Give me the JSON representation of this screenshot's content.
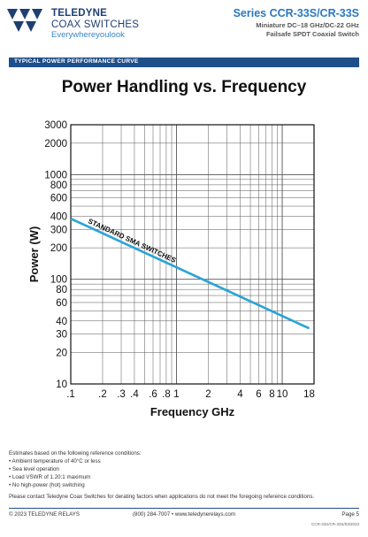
{
  "header": {
    "brand_line1": "TELEDYNE",
    "brand_line2": "COAX SWITCHES",
    "brand_tagline": "Everywhereyoulook",
    "series": "Series CCR-33S/CR-33S",
    "subtitle1": "Miniature DC–18 GHz/DC-22 GHz",
    "subtitle2": "Failsafe SPDT Coaxial Switch"
  },
  "banner": "TYPICAL POWER PERFORMANCE CURVE",
  "colors": {
    "brand_dark": "#1f4f8a",
    "accent": "#2a78c0",
    "series_line": "#29a3d9"
  },
  "chart_data": {
    "type": "line",
    "title": "Power Handling vs. Frequency",
    "xlabel": "Frequency GHz",
    "ylabel": "Power (W)",
    "xscale": "log",
    "yscale": "log",
    "xlim": [
      0.1,
      20
    ],
    "ylim": [
      10,
      3000
    ],
    "xticks": [
      {
        "v": 0.1,
        "label": ".1"
      },
      {
        "v": 0.2,
        "label": ".2"
      },
      {
        "v": 0.3,
        "label": ".3"
      },
      {
        "v": 0.4,
        "label": ".4"
      },
      {
        "v": 0.6,
        "label": ".6"
      },
      {
        "v": 0.8,
        "label": ".8"
      },
      {
        "v": 1,
        "label": "1"
      },
      {
        "v": 2,
        "label": "2"
      },
      {
        "v": 4,
        "label": "4"
      },
      {
        "v": 6,
        "label": "6"
      },
      {
        "v": 8,
        "label": "8"
      },
      {
        "v": 10,
        "label": "10"
      },
      {
        "v": 18,
        "label": "18"
      }
    ],
    "yticks": [
      {
        "v": 10,
        "label": "10"
      },
      {
        "v": 20,
        "label": "20"
      },
      {
        "v": 30,
        "label": "30"
      },
      {
        "v": 40,
        "label": "40"
      },
      {
        "v": 60,
        "label": "60"
      },
      {
        "v": 80,
        "label": "80"
      },
      {
        "v": 100,
        "label": "100"
      },
      {
        "v": 200,
        "label": "200"
      },
      {
        "v": 300,
        "label": "300"
      },
      {
        "v": 400,
        "label": "400"
      },
      {
        "v": 600,
        "label": "600"
      },
      {
        "v": 800,
        "label": "800"
      },
      {
        "v": 1000,
        "label": "1000"
      },
      {
        "v": 2000,
        "label": "2000"
      },
      {
        "v": 3000,
        "label": "3000"
      }
    ],
    "grid": true,
    "series": [
      {
        "name": "STANDARD SMA SWITCHES",
        "x": [
          0.1,
          18
        ],
        "y": [
          380,
          34
        ]
      }
    ]
  },
  "notes": {
    "intro": "Estimates based on the following reference conditions:",
    "items": [
      "• Ambient temperature of 40°C or less",
      "• Sea level operation",
      "• Load VSWR of 1.20:1 maximum",
      "• No high-power (hot) switching"
    ],
    "contact": "Please contact Teledyne Coax Switches for derating factors when applications do not meet the foregoing reference conditions."
  },
  "footer": {
    "copyright": "© 2023 TELEDYNE RELAYS",
    "contact": "(800) 284-7007 • www.teledynerelays.com",
    "page": "Page 5",
    "docnum": "CCR-33S/CR-33S/03/2023"
  }
}
